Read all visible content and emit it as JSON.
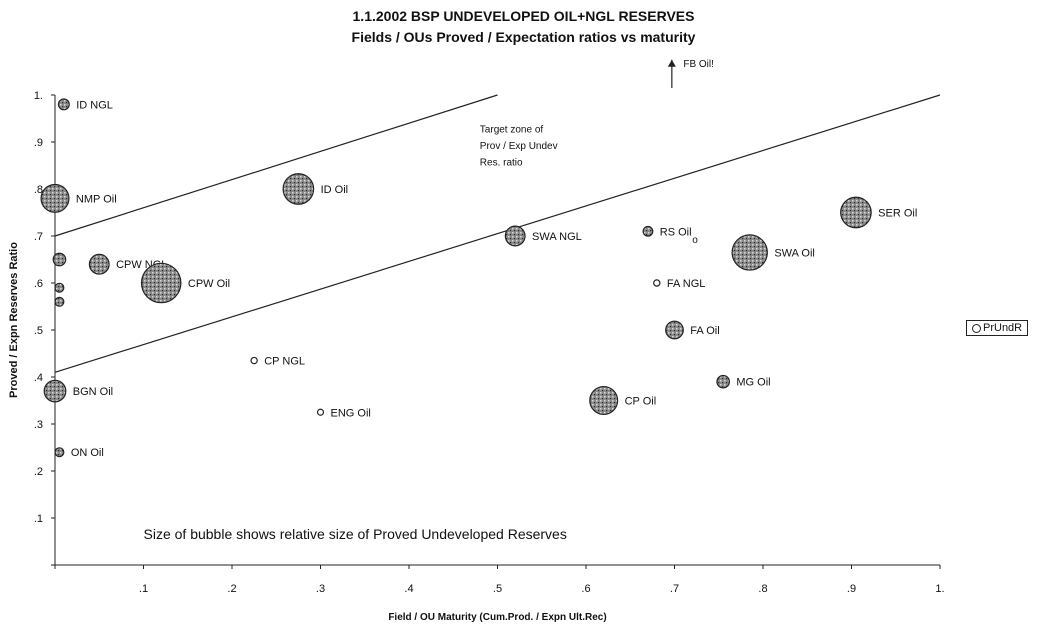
{
  "chart_data": {
    "type": "scatter",
    "title": "1.1.2002 BSP UNDEVELOPED OIL+NGL RESERVES",
    "subtitle": "Fields / OUs Proved / Expectation ratios vs maturity",
    "xlabel": "Field / OU  Maturity (Cum.Prod. / Expn Ult.Rec)",
    "ylabel": "Proved / Expn Reserves Ratio",
    "xlim": [
      0,
      1
    ],
    "ylim": [
      0,
      1
    ],
    "x_ticks": [
      "",
      ".1",
      ".2",
      ".3",
      ".4",
      ".5",
      ".6",
      ".7",
      ".8",
      ".9",
      "1."
    ],
    "y_ticks": [
      "",
      ".1",
      ".2",
      ".3",
      ".4",
      ".5",
      ".6",
      ".7",
      ".8",
      ".9",
      "1."
    ],
    "legend": {
      "label": "PrUndR",
      "placement": "right"
    },
    "series": [
      {
        "name": "PrUndR",
        "points": [
          {
            "label": "ID NGL",
            "x": 0.01,
            "y": 0.98,
            "size": 1.5
          },
          {
            "label": "NMP Oil",
            "x": 0.0,
            "y": 0.78,
            "size": 10
          },
          {
            "label": "CPW NGL",
            "x": 0.05,
            "y": 0.64,
            "size": 5
          },
          {
            "label": "",
            "x": 0.005,
            "y": 0.65,
            "size": 2
          },
          {
            "label": "",
            "x": 0.005,
            "y": 0.59,
            "size": 1
          },
          {
            "label": "",
            "x": 0.005,
            "y": 0.56,
            "size": 1
          },
          {
            "label": "CPW Oil",
            "x": 0.12,
            "y": 0.6,
            "size": 20
          },
          {
            "label": "ID Oil",
            "x": 0.275,
            "y": 0.8,
            "size": 12
          },
          {
            "label": "BGN Oil",
            "x": 0.0,
            "y": 0.37,
            "size": 6
          },
          {
            "label": "ON Oil",
            "x": 0.005,
            "y": 0.24,
            "size": 1
          },
          {
            "label": "CP NGL",
            "x": 0.225,
            "y": 0.435,
            "size": 0.5
          },
          {
            "label": "ENG Oil",
            "x": 0.3,
            "y": 0.325,
            "size": 0.3
          },
          {
            "label": "SWA NGL",
            "x": 0.52,
            "y": 0.7,
            "size": 5
          },
          {
            "label": "RS Oil",
            "x": 0.67,
            "y": 0.71,
            "size": 1.2
          },
          {
            "label": "FA NGL",
            "x": 0.68,
            "y": 0.6,
            "size": 0.5
          },
          {
            "label": "FA Oil",
            "x": 0.7,
            "y": 0.5,
            "size": 4
          },
          {
            "label": "CP Oil",
            "x": 0.62,
            "y": 0.35,
            "size": 10
          },
          {
            "label": "MG Oil",
            "x": 0.755,
            "y": 0.39,
            "size": 2
          },
          {
            "label": "SWA Oil",
            "x": 0.785,
            "y": 0.665,
            "size": 16
          },
          {
            "label": "SER Oil",
            "x": 0.905,
            "y": 0.75,
            "size": 12
          }
        ]
      }
    ],
    "reference_lines": [
      {
        "name": "upper",
        "from": [
          0,
          0.7
        ],
        "to": [
          0.5,
          1.0
        ]
      },
      {
        "name": "lower",
        "from": [
          0,
          0.41
        ],
        "to": [
          1.0,
          1.0
        ]
      }
    ],
    "annotations": [
      {
        "text": "Target zone of",
        "x": 0.48,
        "y": 0.92
      },
      {
        "text": "Prov / Exp Undev",
        "x": 0.48,
        "y": 0.885
      },
      {
        "text": "Res. ratio",
        "x": 0.48,
        "y": 0.85
      },
      {
        "text": "Size of bubble shows relative size of Proved Undeveloped Reserves",
        "x": 0.1,
        "y": 0.055
      },
      {
        "text": "FB Oil!",
        "x": 0.71,
        "y": 1.06
      },
      {
        "text": "o",
        "x": 0.72,
        "y": 0.685
      }
    ]
  }
}
